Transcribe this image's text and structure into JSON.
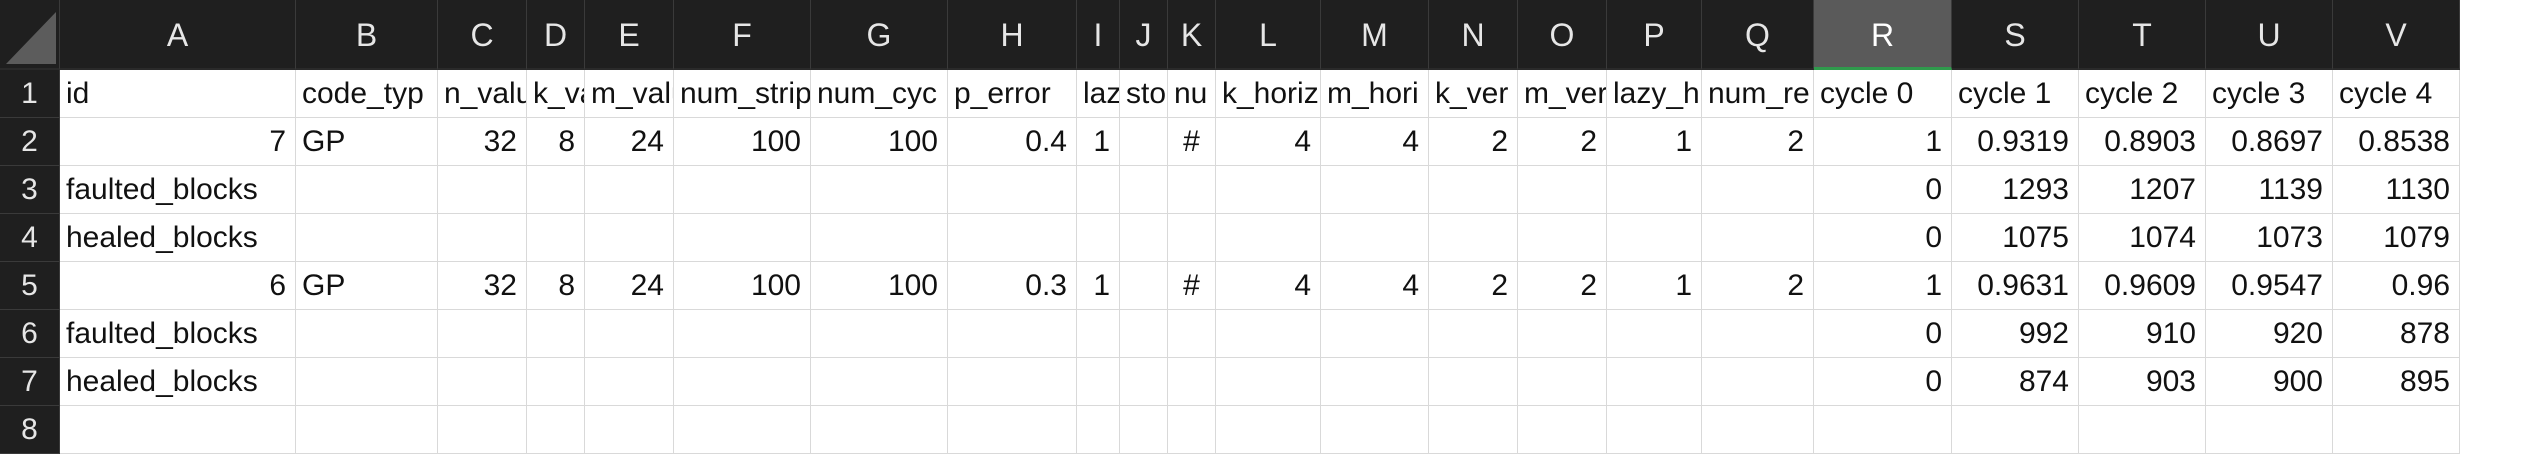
{
  "columns": [
    "A",
    "B",
    "C",
    "D",
    "E",
    "F",
    "G",
    "H",
    "I",
    "J",
    "K",
    "L",
    "M",
    "N",
    "O",
    "P",
    "Q",
    "R",
    "S",
    "T",
    "U",
    "V"
  ],
  "selected_column": "R",
  "row_numbers": [
    "1",
    "2",
    "3",
    "4",
    "5",
    "6",
    "7",
    "8"
  ],
  "rows": [
    [
      "id",
      "code_typ",
      "n_valu",
      "k_val",
      "m_valu",
      "num_strip",
      "num_cyc",
      "p_error",
      "laz",
      "sto",
      "nu",
      "k_horiz",
      "m_hori",
      "k_ver",
      "m_ver",
      "lazy_h",
      "num_re",
      "cycle 0",
      "cycle 1",
      "cycle 2",
      "cycle 3",
      "cycle 4"
    ],
    [
      "7",
      "GP",
      "32",
      "8",
      "24",
      "100",
      "100",
      "0.4",
      "1",
      "",
      "#",
      "4",
      "4",
      "2",
      "2",
      "1",
      "2",
      "1",
      "0.9319",
      "0.8903",
      "0.8697",
      "0.8538"
    ],
    [
      "faulted_blocks",
      "",
      "",
      "",
      "",
      "",
      "",
      "",
      "",
      "",
      "",
      "",
      "",
      "",
      "",
      "",
      "",
      "0",
      "1293",
      "1207",
      "1139",
      "1130"
    ],
    [
      "healed_blocks",
      "",
      "",
      "",
      "",
      "",
      "",
      "",
      "",
      "",
      "",
      "",
      "",
      "",
      "",
      "",
      "",
      "0",
      "1075",
      "1074",
      "1073",
      "1079"
    ],
    [
      "6",
      "GP",
      "32",
      "8",
      "24",
      "100",
      "100",
      "0.3",
      "1",
      "",
      "#",
      "4",
      "4",
      "2",
      "2",
      "1",
      "2",
      "1",
      "0.9631",
      "0.9609",
      "0.9547",
      "0.96"
    ],
    [
      "faulted_blocks",
      "",
      "",
      "",
      "",
      "",
      "",
      "",
      "",
      "",
      "",
      "",
      "",
      "",
      "",
      "",
      "",
      "0",
      "992",
      "910",
      "920",
      "878"
    ],
    [
      "healed_blocks",
      "",
      "",
      "",
      "",
      "",
      "",
      "",
      "",
      "",
      "",
      "",
      "",
      "",
      "",
      "",
      "",
      "0",
      "874",
      "903",
      "900",
      "895"
    ],
    [
      "",
      "",
      "",
      "",
      "",
      "",
      "",
      "",
      "",
      "",
      "",
      "",
      "",
      "",
      "",
      "",
      "",
      "",
      "",
      "",
      "",
      ""
    ]
  ]
}
